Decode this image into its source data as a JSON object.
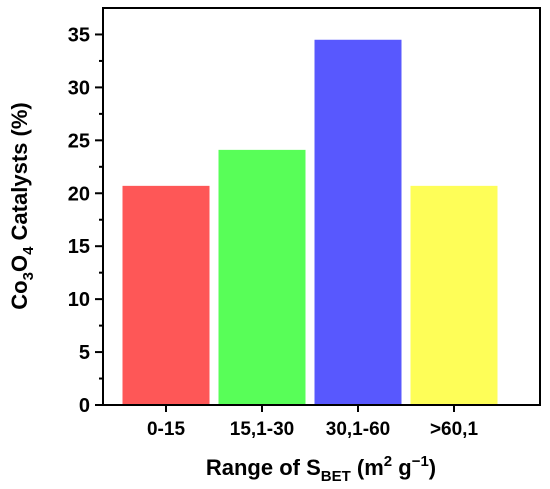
{
  "chart_data": {
    "type": "bar",
    "categories": [
      "0-15",
      "15,1-30",
      "30,1-60",
      ">60,1"
    ],
    "values": [
      20.7,
      24.1,
      34.5,
      20.7
    ],
    "colors": [
      "#fe5757",
      "#58fe58",
      "#5858fe",
      "#fefe58"
    ],
    "ylim": [
      0,
      37.5
    ],
    "y_ticks": [
      0,
      5,
      10,
      15,
      20,
      25,
      30,
      35
    ],
    "xlabel": {
      "prefix": "Range of S",
      "subscript": "BET",
      "units_open": " (m",
      "units_sup": "2",
      "units_rest": " g",
      "units_sup2": "−1",
      "units_close": ")"
    },
    "ylabel": {
      "prefix": "Co",
      "sub1": "3",
      "mid": "O",
      "sub2": "4",
      "suffix": " Catalysts (%)"
    },
    "grid": false,
    "legend": "none"
  }
}
